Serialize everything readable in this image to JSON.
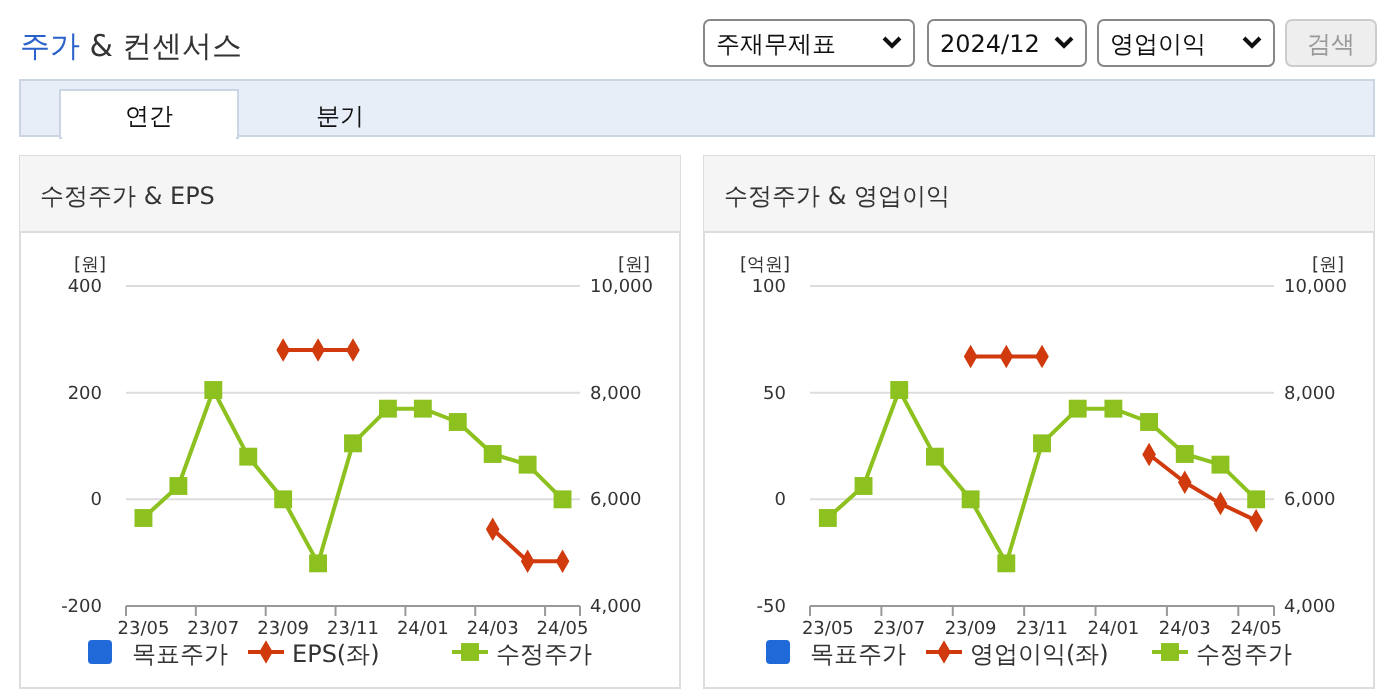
{
  "chart_data": [
    {
      "type": "other",
      "title": "주가 & 컨센서스",
      "annotations": [
        "주재무제표",
        "2024/12",
        "영업이익",
        "검색",
        "연간",
        "분기"
      ]
    },
    {
      "type": "line",
      "title": "수정주가 & EPS",
      "ylabel": "[원]",
      "y2label": "[원]",
      "categories": [
        "23/05",
        null,
        "23/07",
        null,
        "23/09",
        null,
        "23/11",
        null,
        "24/01",
        null,
        "24/03",
        null,
        "24/05"
      ],
      "series": [
        {
          "name": "목표주가",
          "color": "#1f6ad8",
          "marker": "square",
          "axis": "y2",
          "values": [
            null,
            null,
            null,
            null,
            null,
            null,
            null,
            null,
            null,
            null,
            null,
            null,
            null
          ]
        },
        {
          "name": "EPS(좌)",
          "color": "#d03a0c",
          "marker": "diamond",
          "values": [
            null,
            null,
            null,
            null,
            280,
            280,
            280,
            null,
            null,
            null,
            -56,
            -116,
            -116
          ]
        },
        {
          "name": "수정주가",
          "color": "#8cc11f",
          "marker": "square",
          "axis": "y2",
          "values": [
            5650,
            6250,
            8050,
            6800,
            6000,
            4800,
            7050,
            7700,
            7700,
            7450,
            6850,
            6650,
            6000
          ]
        }
      ],
      "ylim": [
        -200,
        400
      ],
      "yticks": [
        -200,
        0,
        200,
        400
      ],
      "y2lim": [
        4000,
        10000
      ],
      "y2ticks": [
        {
          "value": 4000,
          "label": "4,000"
        },
        {
          "value": 6000,
          "label": "6,000"
        },
        {
          "value": 8000,
          "label": "8,000"
        },
        {
          "value": 10000,
          "label": "10,000"
        }
      ],
      "grid": "y",
      "legend": "bottom"
    },
    {
      "type": "line",
      "title": "수정주가 & 영업이익",
      "ylabel": "[억원]",
      "y2label": "[원]",
      "categories": [
        "23/05",
        null,
        "23/07",
        null,
        "23/09",
        null,
        "23/11",
        null,
        "24/01",
        null,
        "24/03",
        null,
        "24/05"
      ],
      "series": [
        {
          "name": "목표주가",
          "color": "#1f6ad8",
          "marker": "square",
          "axis": "y2",
          "values": [
            null,
            null,
            null,
            null,
            null,
            null,
            null,
            null,
            null,
            null,
            null,
            null,
            null
          ]
        },
        {
          "name": "영업이익(좌)",
          "color": "#d03a0c",
          "marker": "diamond",
          "values": [
            null,
            null,
            null,
            null,
            67,
            67,
            67,
            null,
            null,
            21,
            8,
            -2,
            -10
          ]
        },
        {
          "name": "수정주가",
          "color": "#8cc11f",
          "marker": "square",
          "axis": "y2",
          "values": [
            5650,
            6250,
            8050,
            6800,
            6000,
            4800,
            7050,
            7700,
            7700,
            7450,
            6850,
            6650,
            6000
          ]
        }
      ],
      "ylim": [
        -50,
        100
      ],
      "yticks": [
        -50,
        0,
        50,
        100
      ],
      "y2lim": [
        4000,
        10000
      ],
      "y2ticks": [
        {
          "value": 4000,
          "label": "4,000"
        },
        {
          "value": 6000,
          "label": "6,000"
        },
        {
          "value": 8000,
          "label": "8,000"
        },
        {
          "value": 10000,
          "label": "10,000"
        }
      ],
      "grid": "y",
      "legend": "bottom"
    }
  ]
}
